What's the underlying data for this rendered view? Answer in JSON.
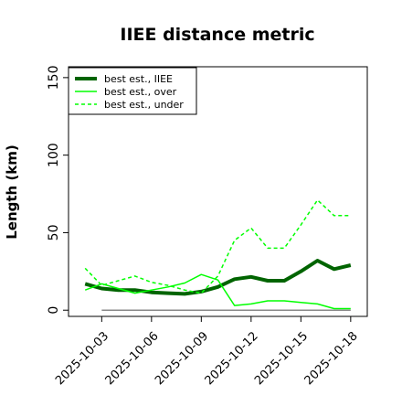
{
  "chart_data": {
    "type": "line",
    "title": "IIEE distance metric",
    "xlabel": "",
    "ylabel": "Length (km)",
    "x": [
      "2025-10-02",
      "2025-10-03",
      "2025-10-04",
      "2025-10-05",
      "2025-10-06",
      "2025-10-07",
      "2025-10-08",
      "2025-10-09",
      "2025-10-10",
      "2025-10-11",
      "2025-10-12",
      "2025-10-13",
      "2025-10-14",
      "2025-10-15",
      "2025-10-16",
      "2025-10-17",
      "2025-10-18"
    ],
    "xticks": [
      "2025-10-03",
      "2025-10-06",
      "2025-10-09",
      "2025-10-12",
      "2025-10-15",
      "2025-10-18"
    ],
    "xlim": [
      "2025-10-01",
      "2025-10-19"
    ],
    "ylim": [
      -4,
      157
    ],
    "yticks": [
      0,
      50,
      100,
      150
    ],
    "grid": false,
    "legend_position": "top-left",
    "series": [
      {
        "name": "best est., IIEE",
        "color": "#006400",
        "style": "solid",
        "width": 4,
        "values": [
          17,
          14,
          13,
          13,
          11.5,
          11,
          10.5,
          12,
          15,
          20,
          21.5,
          19,
          19,
          25,
          32,
          26.5,
          29
        ]
      },
      {
        "name": "best est., over",
        "color": "#00ff00",
        "style": "solid",
        "width": 1.5,
        "values": [
          13,
          17,
          14,
          11,
          13,
          15,
          17.5,
          23,
          19.5,
          3,
          4,
          6,
          6,
          5,
          4,
          1,
          1
        ]
      },
      {
        "name": "best est., under",
        "color": "#00ff00",
        "style": "dashed",
        "width": 1.5,
        "values": [
          27,
          16,
          19,
          22,
          18,
          16,
          13,
          11,
          22,
          45,
          53,
          40,
          40,
          55,
          71,
          61,
          61
        ]
      }
    ],
    "reference_line": {
      "y": 0,
      "from": "2025-10-03",
      "to": "2025-10-18",
      "color": "#888888"
    }
  }
}
